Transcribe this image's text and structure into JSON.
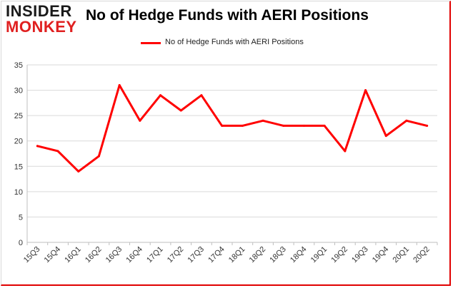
{
  "logo": {
    "line1": "INSIDER",
    "line2": "MONKEY"
  },
  "chart_data": {
    "type": "line",
    "title": "No of Hedge Funds with AERI Positions",
    "xlabel": "",
    "ylabel": "",
    "categories": [
      "15Q3",
      "15Q4",
      "16Q1",
      "16Q2",
      "16Q3",
      "16Q4",
      "17Q1",
      "17Q2",
      "17Q3",
      "17Q4",
      "18Q1",
      "18Q2",
      "18Q3",
      "18Q4",
      "19Q1",
      "19Q2",
      "19Q3",
      "19Q4",
      "20Q1",
      "20Q2"
    ],
    "series": [
      {
        "name": "No of Hedge Funds with AERI Positions",
        "values": [
          19,
          18,
          14,
          17,
          31,
          24,
          29,
          26,
          29,
          23,
          23,
          24,
          23,
          23,
          23,
          18,
          30,
          21,
          24,
          23
        ]
      }
    ],
    "ylim": [
      0,
      35
    ],
    "yticks": [
      0,
      5,
      10,
      15,
      20,
      25,
      30,
      35
    ],
    "grid": true,
    "legend": "top-center",
    "line_color": "#ff0000",
    "grid_color": "#d9d9d9"
  }
}
